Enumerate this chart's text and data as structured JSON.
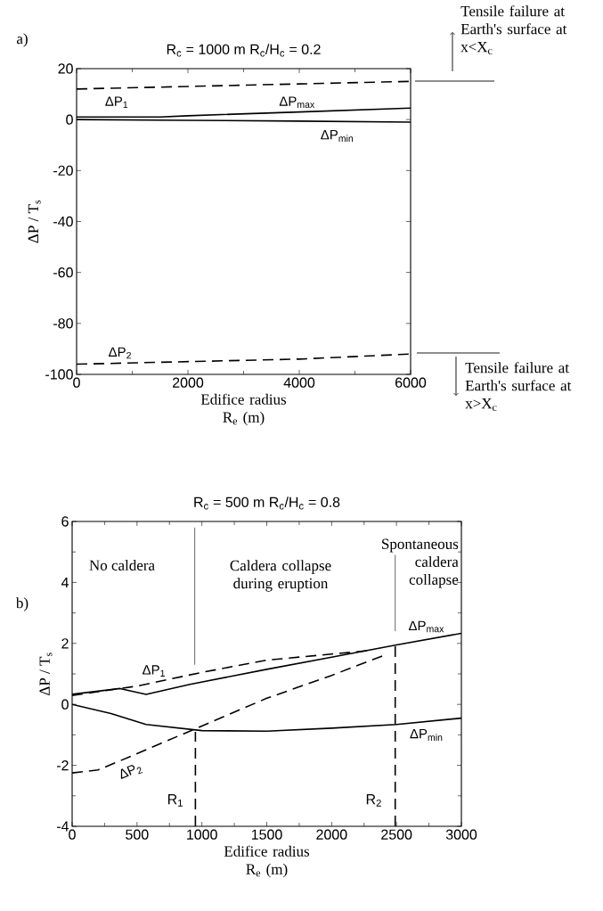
{
  "chart_data": [
    {
      "type": "line",
      "title": "R$_{c}$ = 1000 m    R$_{c}$/H$_{c}$ = 0.2",
      "xlabel": "Edifice radius R$_{e}$  (m)",
      "ylabel": "ΔP / T$_{s}$",
      "xlim": [
        0,
        6000
      ],
      "ylim": [
        -100,
        20
      ],
      "xticks": [
        0,
        2000,
        4000,
        6000
      ],
      "yticks": [
        -100,
        -80,
        -60,
        -40,
        -20,
        0,
        20
      ],
      "series": [
        {
          "name": "ΔP$_{1}$",
          "color": "#000000",
          "line_style": "dashed",
          "x": [
            0,
            2000,
            4000,
            6000
          ],
          "values": [
            12,
            13,
            14,
            15
          ]
        },
        {
          "name": "ΔP$_{max}$",
          "color": "#000000",
          "line_style": "solid",
          "x": [
            0,
            1500,
            2000,
            4000,
            6000
          ],
          "values": [
            1,
            1,
            1.5,
            3,
            4.5
          ]
        },
        {
          "name": "ΔP$_{min}$",
          "color": "#000000",
          "line_style": "solid",
          "x": [
            0,
            2000,
            4000,
            6000
          ],
          "values": [
            0,
            -0.3,
            -0.6,
            -1
          ]
        },
        {
          "name": "ΔP$_{2}$",
          "color": "#000000",
          "line_style": "dashed",
          "x": [
            0,
            2000,
            4000,
            6000
          ],
          "values": [
            -96,
            -95,
            -94,
            -92
          ]
        }
      ],
      "annotations": [
        "a)",
        "Tensile failure at Earth's surface at x<X$_{c}$",
        "Tensile failure at Earth's surface at x>X$_{c}$"
      ]
    },
    {
      "type": "line",
      "title": "R$_{c}$ =  500 m    R$_{c}$/H$_{c}$ = 0.8",
      "xlabel": "Edifice radius R$_{e}$  (m)",
      "ylabel": "ΔP / T$_{s}$",
      "xlim": [
        0,
        3000
      ],
      "ylim": [
        -4,
        6
      ],
      "xticks": [
        0,
        500,
        1000,
        1500,
        2000,
        2500,
        3000
      ],
      "yticks": [
        -4,
        -2,
        0,
        2,
        4,
        6
      ],
      "series": [
        {
          "name": "ΔP$_{1}$",
          "color": "#000000",
          "line_style": "dashed",
          "x": [
            0,
            500,
            1000,
            1500,
            2000,
            2300
          ],
          "values": [
            0.29,
            0.6,
            1.05,
            1.45,
            1.65,
            1.77
          ]
        },
        {
          "name": "ΔP$_{max}$",
          "color": "#000000",
          "line_style": "solid",
          "x": [
            0,
            370,
            570,
            900,
            1500,
            2000,
            2500,
            3000
          ],
          "values": [
            0.33,
            0.52,
            0.33,
            0.65,
            1.15,
            1.55,
            1.95,
            2.33
          ]
        },
        {
          "name": "ΔP$_{min}$",
          "color": "#000000",
          "line_style": "solid",
          "x": [
            0,
            300,
            570,
            1000,
            1500,
            2000,
            2500,
            3000
          ],
          "values": [
            0,
            -0.3,
            -0.66,
            -0.86,
            -0.88,
            -0.78,
            -0.66,
            -0.45
          ]
        },
        {
          "name": "ΔP$_{2}$",
          "color": "#000000",
          "line_style": "dashed",
          "x": [
            0,
            200,
            370,
            950,
            1500,
            2000,
            2400
          ],
          "values": [
            -2.25,
            -2.15,
            -1.85,
            -0.8,
            0.2,
            0.95,
            1.6
          ]
        }
      ],
      "ref_lines": [
        {
          "axis": "x",
          "value": 950,
          "label": "R$_{1}$",
          "line_style": "dashed"
        },
        {
          "axis": "x",
          "value": 2490,
          "label": "R$_{2}$",
          "line_style": "dashed"
        },
        {
          "axis": "x",
          "value": 945,
          "line_style": "solid"
        },
        {
          "axis": "x",
          "value": 2490,
          "line_style": "solid"
        }
      ],
      "annotations": [
        "b)",
        "No caldera",
        "Caldera collapse during eruption",
        "Spontaneous caldera collapse"
      ]
    }
  ]
}
